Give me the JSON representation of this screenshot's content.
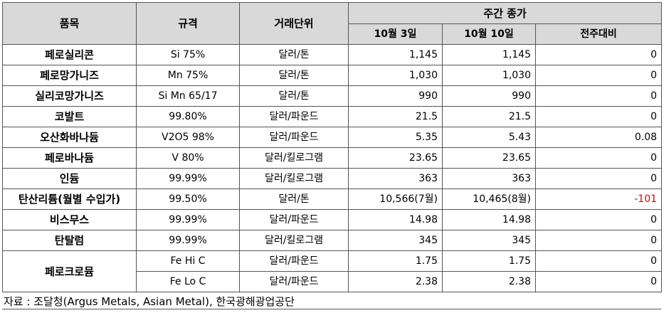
{
  "headers": {
    "item": "품목",
    "spec": "규격",
    "unit": "거래단위",
    "weekly_close": "주간 종가",
    "oct3": "10월 3일",
    "oct10": "10월 10일",
    "change": "전주대비"
  },
  "rows": [
    {
      "name": "페로실리콘",
      "spec": "Si 75%",
      "unit": "달러/톤",
      "oct3": "1,145",
      "oct10": "1,145",
      "change": "0"
    },
    {
      "name": "페로망가니즈",
      "spec": "Mn 75%",
      "unit": "달러/톤",
      "oct3": "1,030",
      "oct10": "1,030",
      "change": "0"
    },
    {
      "name": "실리코망가니즈",
      "spec": "Si Mn 65/17",
      "unit": "달러/톤",
      "oct3": "990",
      "oct10": "990",
      "change": "0"
    },
    {
      "name": "코발트",
      "spec": "99.80%",
      "unit": "달러/파운드",
      "oct3": "21.5",
      "oct10": "21.5",
      "change": "0"
    },
    {
      "name": "오산화바나듐",
      "spec": "V2O5 98%",
      "unit": "달러/파운드",
      "oct3": "5.35",
      "oct10": "5.43",
      "change": "0.08"
    },
    {
      "name": "페로바나듐",
      "spec": "V 80%",
      "unit": "달러/킬로그램",
      "oct3": "23.65",
      "oct10": "23.65",
      "change": "0"
    },
    {
      "name": "인듐",
      "spec": "99.99%",
      "unit": "달러/킬로그램",
      "oct3": "363",
      "oct10": "363",
      "change": "0"
    },
    {
      "name": "탄산리튬(월별 수입가)",
      "spec": "99.50%",
      "unit": "달러/톤",
      "oct3": "10,566(7월)",
      "oct10": "10,465(8월)",
      "change": "-101"
    },
    {
      "name": "비스무스",
      "spec": "99.99%",
      "unit": "달러/파운드",
      "oct3": "14.98",
      "oct10": "14.98",
      "change": "0"
    },
    {
      "name": "탄탈럼",
      "spec": "99.99%",
      "unit": "달러/킬로그램",
      "oct3": "345",
      "oct10": "345",
      "change": "0"
    }
  ],
  "ferrochrome": {
    "name": "페로크로뮴",
    "sub": [
      {
        "spec": "Fe Hi C",
        "unit": "달러/파운드",
        "oct3": "1.75",
        "oct10": "1.75",
        "change": "0"
      },
      {
        "spec": "Fe Lo C",
        "unit": "달러/파운드",
        "oct3": "2.38",
        "oct10": "2.38",
        "change": "0"
      }
    ]
  },
  "source": "자료 : 조달청(Argus Metals, Asian Metal), 한국광해광업공단",
  "colors": {
    "header_bg": "#d9d9d9",
    "negative": "#e00000"
  }
}
